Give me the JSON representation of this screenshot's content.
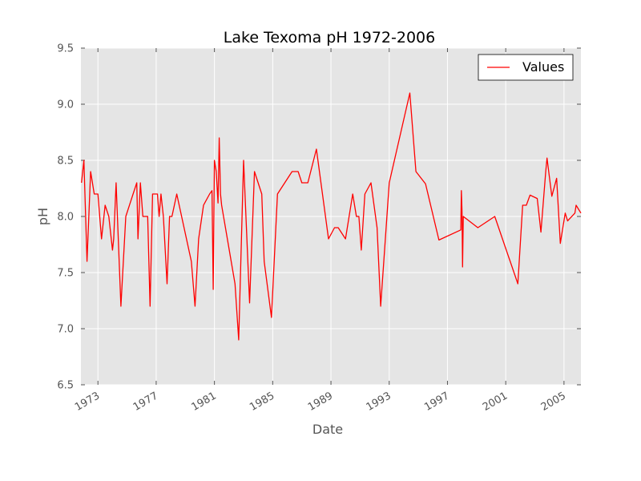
{
  "chart_data": {
    "type": "line",
    "title": "Lake Texoma pH 1972-2006",
    "xlabel": "Date",
    "ylabel": "pH",
    "xlim": [
      "1971-11-01",
      "2006-03-01"
    ],
    "ylim": [
      6.5,
      9.5
    ],
    "yticks": [
      6.5,
      7.0,
      7.5,
      8.0,
      8.5,
      9.0,
      9.5
    ],
    "ytick_labels": [
      "6.5",
      "7.0",
      "7.5",
      "8.0",
      "8.5",
      "9.0",
      "9.5"
    ],
    "xticks": [
      "1973",
      "1977",
      "1981",
      "1985",
      "1989",
      "1993",
      "1997",
      "2001",
      "2005"
    ],
    "grid": true,
    "background": "#e5e5e5",
    "legend_position": "top-right",
    "series": [
      {
        "name": "Values",
        "color": "#ff0000",
        "points": [
          [
            "1971-11-15",
            8.3
          ],
          [
            "1972-01-15",
            8.5
          ],
          [
            "1972-04-01",
            7.6
          ],
          [
            "1972-07-01",
            8.4
          ],
          [
            "1972-10-01",
            8.2
          ],
          [
            "1973-01-01",
            8.2
          ],
          [
            "1973-04-01",
            7.8
          ],
          [
            "1973-07-01",
            8.1
          ],
          [
            "1973-10-01",
            8.0
          ],
          [
            "1974-01-01",
            7.7
          ],
          [
            "1974-02-01",
            7.8
          ],
          [
            "1974-04-01",
            8.3
          ],
          [
            "1974-08-01",
            7.2
          ],
          [
            "1974-12-01",
            8.0
          ],
          [
            "1975-06-01",
            8.2
          ],
          [
            "1975-09-01",
            8.3
          ],
          [
            "1975-10-01",
            7.8
          ],
          [
            "1975-12-01",
            8.3
          ],
          [
            "1976-02-01",
            8.0
          ],
          [
            "1976-06-01",
            8.0
          ],
          [
            "1976-08-01",
            7.2
          ],
          [
            "1976-10-01",
            8.2
          ],
          [
            "1977-02-01",
            8.2
          ],
          [
            "1977-03-15",
            8.0
          ],
          [
            "1977-05-01",
            8.2
          ],
          [
            "1977-07-01",
            8.0
          ],
          [
            "1977-10-01",
            7.4
          ],
          [
            "1977-12-01",
            8.0
          ],
          [
            "1978-02-01",
            8.0
          ],
          [
            "1978-06-01",
            8.2
          ],
          [
            "1979-06-01",
            7.6
          ],
          [
            "1979-09-01",
            7.2
          ],
          [
            "1979-12-01",
            7.8
          ],
          [
            "1980-04-01",
            8.1
          ],
          [
            "1980-09-01",
            8.2
          ],
          [
            "1980-11-01",
            8.23
          ],
          [
            "1980-12-01",
            7.35
          ],
          [
            "1981-01-01",
            8.5
          ],
          [
            "1981-02-15",
            8.4
          ],
          [
            "1981-04-01",
            8.12
          ],
          [
            "1981-05-01",
            8.7
          ],
          [
            "1981-06-01",
            8.2
          ],
          [
            "1981-07-01",
            8.1
          ],
          [
            "1982-06-01",
            7.4
          ],
          [
            "1982-09-01",
            6.9
          ],
          [
            "1983-01-01",
            8.5
          ],
          [
            "1983-06-01",
            7.23
          ],
          [
            "1983-10-01",
            8.4
          ],
          [
            "1984-04-01",
            8.2
          ],
          [
            "1984-06-01",
            7.6
          ],
          [
            "1984-12-01",
            7.1
          ],
          [
            "1985-05-01",
            8.2
          ],
          [
            "1986-05-01",
            8.4
          ],
          [
            "1986-10-01",
            8.4
          ],
          [
            "1987-01-01",
            8.3
          ],
          [
            "1987-06-01",
            8.3
          ],
          [
            "1988-01-01",
            8.6
          ],
          [
            "1988-11-01",
            7.8
          ],
          [
            "1989-04-01",
            7.9
          ],
          [
            "1989-07-01",
            7.9
          ],
          [
            "1990-01-01",
            7.8
          ],
          [
            "1990-07-01",
            8.2
          ],
          [
            "1990-10-01",
            8.0
          ],
          [
            "1990-12-01",
            8.0
          ],
          [
            "1991-02-01",
            7.7
          ],
          [
            "1991-05-01",
            8.2
          ],
          [
            "1991-10-01",
            8.3
          ],
          [
            "1992-03-01",
            7.9
          ],
          [
            "1992-06-01",
            7.2
          ],
          [
            "1993-01-01",
            8.3
          ],
          [
            "1994-06-01",
            9.1
          ],
          [
            "1994-11-01",
            8.4
          ],
          [
            "1995-07-01",
            8.29
          ],
          [
            "1996-06-01",
            7.79
          ],
          [
            "1997-12-01",
            7.88
          ],
          [
            "1997-12-15",
            8.23
          ],
          [
            "1998-01-01",
            8.05
          ],
          [
            "1998-01-15",
            7.55
          ],
          [
            "1998-02-01",
            8.0
          ],
          [
            "1999-02-01",
            7.9
          ],
          [
            "2000-04-01",
            8.0
          ],
          [
            "2001-11-01",
            7.4
          ],
          [
            "2002-03-01",
            8.1
          ],
          [
            "2002-06-01",
            8.1
          ],
          [
            "2002-09-01",
            8.19
          ],
          [
            "2003-03-01",
            8.16
          ],
          [
            "2003-06-01",
            7.86
          ],
          [
            "2003-10-01",
            8.4
          ],
          [
            "2003-11-01",
            8.52
          ],
          [
            "2004-03-01",
            8.18
          ],
          [
            "2004-07-01",
            8.34
          ],
          [
            "2004-10-01",
            7.76
          ],
          [
            "2005-02-01",
            8.03
          ],
          [
            "2005-04-01",
            7.96
          ],
          [
            "2005-10-01",
            8.03
          ],
          [
            "2005-11-01",
            8.1
          ],
          [
            "2006-03-01",
            8.03
          ]
        ]
      }
    ]
  }
}
